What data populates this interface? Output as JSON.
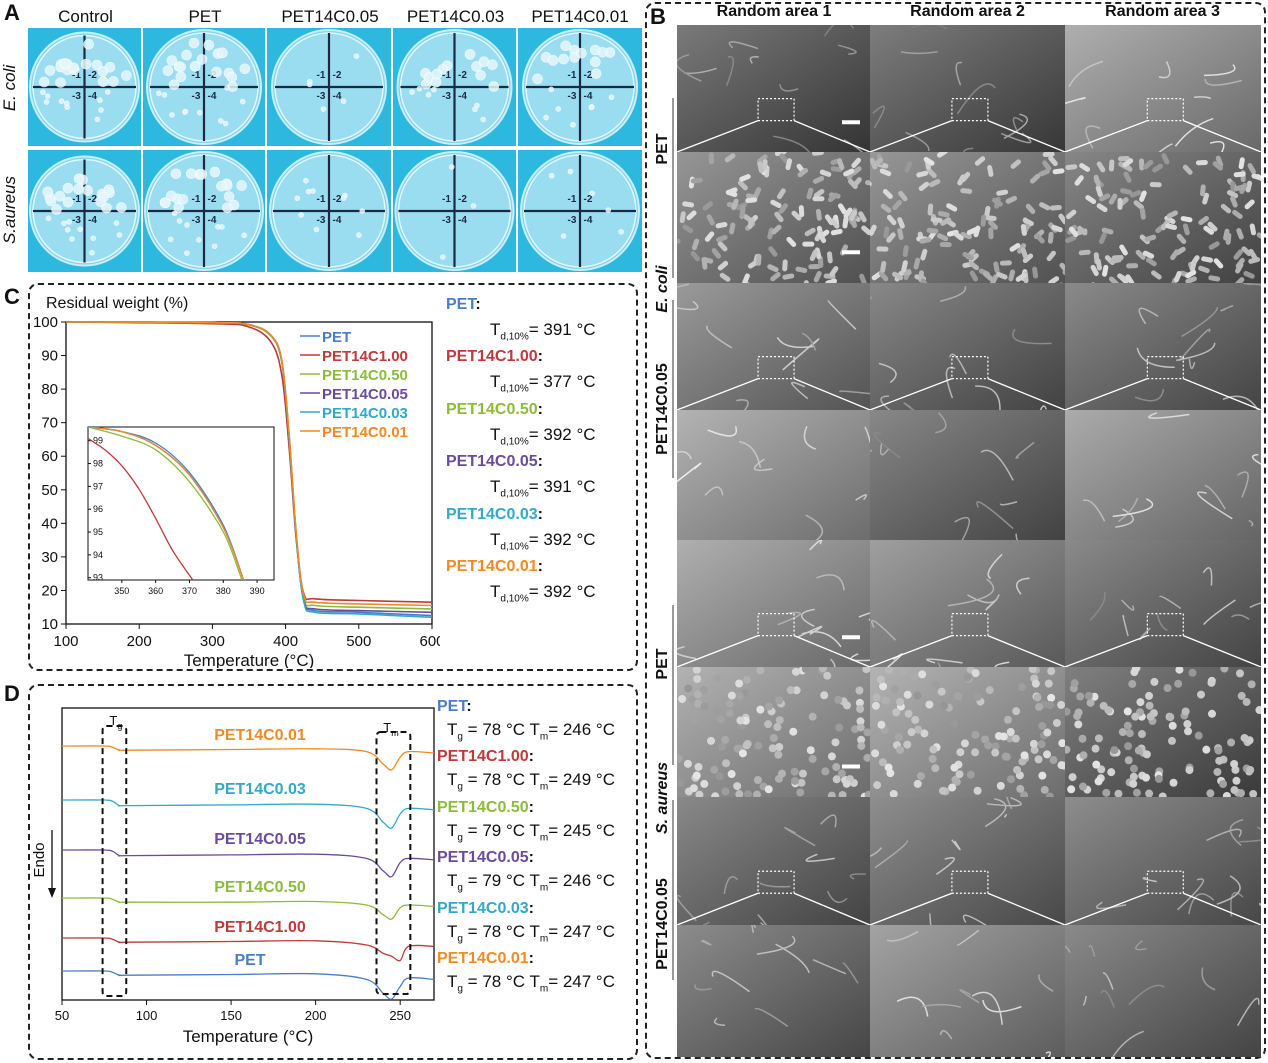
{
  "panels": {
    "A": "A",
    "B": "B",
    "C": "C",
    "D": "D"
  },
  "panelA": {
    "columns": [
      "Control",
      "PET",
      "PET14C0.05",
      "PET14C0.03",
      "PET14C0.01"
    ],
    "rows": [
      "E. coli",
      "S.aureus"
    ]
  },
  "panelB": {
    "columns": [
      "Random area 1",
      "Random area 2",
      "Random area 3"
    ],
    "groups": [
      {
        "sample": "PET",
        "organism": "E. coli"
      },
      {
        "sample": "PET14C0.05",
        "organism": ""
      },
      {
        "sample": "PET",
        "organism": "S. aureus"
      },
      {
        "sample": "PET14C0.05",
        "organism": ""
      }
    ]
  },
  "panelC_results": [
    {
      "name": "PET",
      "value": "= 391 °C",
      "color": "#4a7ecb"
    },
    {
      "name": "PET14C1.00",
      "value": "= 377 °C",
      "color": "#c0393b"
    },
    {
      "name": "PET14C0.50",
      "value": "= 392 °C",
      "color": "#8dbb3c"
    },
    {
      "name": "PET14C0.05",
      "value": "= 391 °C",
      "color": "#6a4c9c"
    },
    {
      "name": "PET14C0.03",
      "value": "= 392 °C",
      "color": "#31a9c7"
    },
    {
      "name": "PET14C0.01",
      "value": "= 392 °C",
      "color": "#f08a24"
    }
  ],
  "panelC_symbol": {
    "main": "T",
    "sub": "d,10%"
  },
  "panelD_results": [
    {
      "name": "PET",
      "tg": "= 78 °C",
      "tm": "= 246 °C",
      "color": "#4a7ecb"
    },
    {
      "name": "PET14C1.00",
      "tg": "= 78 °C",
      "tm": "= 249 °C",
      "color": "#c0393b"
    },
    {
      "name": "PET14C0.50",
      "tg": "= 79 °C",
      "tm": "= 245 °C",
      "color": "#8dbb3c"
    },
    {
      "name": "PET14C0.05",
      "tg": "= 79 °C",
      "tm": "= 246 °C",
      "color": "#6a4c9c"
    },
    {
      "name": "PET14C0.03",
      "tg": "= 78 °C",
      "tm": "= 247 °C",
      "color": "#31a9c7"
    },
    {
      "name": "PET14C0.01",
      "tg": "= 78 °C",
      "tm": "= 247 °C",
      "color": "#f08a24"
    }
  ],
  "chart_data": [
    {
      "type": "line",
      "panel": "C",
      "title": "Residual weight (%)",
      "xlabel": "Temperature (°C)",
      "ylabel": "",
      "xlim": [
        100,
        600
      ],
      "ylim": [
        10,
        100
      ],
      "xticks": [
        "100",
        "200",
        "300",
        "400",
        "500",
        "600"
      ],
      "yticks": [
        "10",
        "20",
        "30",
        "40",
        "50",
        "60",
        "70",
        "80",
        "90",
        "100"
      ],
      "legend": "top-right",
      "series": [
        {
          "name": "PET",
          "color": "#4a7ecb",
          "x": [
            100,
            300,
            350,
            380,
            395,
            405,
            415,
            425,
            440,
            500,
            600
          ],
          "y": [
            100,
            99.8,
            99.2,
            96,
            88,
            65,
            35,
            17,
            14,
            13.5,
            12.5
          ]
        },
        {
          "name": "PET14C1.00",
          "color": "#c0393b",
          "x": [
            100,
            300,
            350,
            380,
            395,
            405,
            415,
            425,
            440,
            500,
            600
          ],
          "y": [
            100,
            99.5,
            98.5,
            94,
            84,
            62,
            34,
            19,
            17.5,
            17,
            16.5
          ]
        },
        {
          "name": "PET14C0.50",
          "color": "#8dbb3c",
          "x": [
            100,
            300,
            350,
            380,
            395,
            405,
            415,
            425,
            440,
            500,
            600
          ],
          "y": [
            100,
            99.8,
            99.1,
            95.8,
            88,
            65,
            35,
            17.5,
            15.5,
            15,
            14.5
          ]
        },
        {
          "name": "PET14C0.05",
          "color": "#6a4c9c",
          "x": [
            100,
            300,
            350,
            380,
            395,
            405,
            415,
            425,
            440,
            500,
            600
          ],
          "y": [
            100,
            99.8,
            99.2,
            96,
            88,
            65,
            35,
            17,
            14.5,
            14,
            13.5
          ]
        },
        {
          "name": "PET14C0.03",
          "color": "#31a9c7",
          "x": [
            100,
            300,
            350,
            380,
            395,
            405,
            415,
            425,
            440,
            500,
            600
          ],
          "y": [
            100,
            99.8,
            99.2,
            96,
            88,
            65,
            35,
            16.5,
            13.5,
            13,
            12
          ]
        },
        {
          "name": "PET14C0.01",
          "color": "#f08a24",
          "x": [
            100,
            300,
            350,
            380,
            395,
            405,
            415,
            425,
            440,
            500,
            600
          ],
          "y": [
            100,
            99.8,
            99.2,
            96,
            88.5,
            66,
            36,
            18.5,
            16.5,
            16,
            15.5
          ]
        }
      ],
      "inset": {
        "xlim": [
          340,
          395
        ],
        "ylim": [
          92.9,
          99.6
        ],
        "xticks": [
          "350",
          "360",
          "370",
          "380",
          "390"
        ],
        "yticks": [
          "93",
          "94",
          "95",
          "96",
          "97",
          "98",
          "99"
        ],
        "series": [
          {
            "name": "PET",
            "color": "#4a7ecb",
            "x": [
              340,
              350,
              360,
              370,
              380,
              386
            ],
            "y": [
              99.6,
              99.4,
              98.9,
              97.6,
              95.3,
              92.9
            ]
          },
          {
            "name": "PET14C1.00",
            "color": "#c0393b",
            "x": [
              340,
              345,
              350,
              355,
              360,
              365,
              371
            ],
            "y": [
              99.1,
              98.6,
              97.9,
              96.9,
              95.6,
              94.2,
              92.9
            ]
          },
          {
            "name": "PET14C0.50",
            "color": "#8dbb3c",
            "x": [
              340,
              350,
              360,
              370,
              380,
              385.5
            ],
            "y": [
              99.6,
              99.2,
              98.6,
              97.2,
              95,
              92.9
            ]
          },
          {
            "name": "PET14C0.05",
            "color": "#6a4c9c",
            "x": [
              340,
              350,
              360,
              370,
              380,
              386
            ],
            "y": [
              99.6,
              99.4,
              98.8,
              97.5,
              95.2,
              92.9
            ]
          },
          {
            "name": "PET14C0.03",
            "color": "#31a9c7",
            "x": [
              340,
              350,
              360,
              370,
              380,
              386
            ],
            "y": [
              99.6,
              99.4,
              98.8,
              97.5,
              95.2,
              92.9
            ]
          },
          {
            "name": "PET14C0.01",
            "color": "#f08a24",
            "x": [
              340,
              350,
              360,
              370,
              380,
              386
            ],
            "y": [
              99.6,
              99.4,
              98.8,
              97.5,
              95.2,
              92.9
            ]
          }
        ]
      }
    },
    {
      "type": "line",
      "panel": "D",
      "xlabel": "Temperature (°C)",
      "ylabel": "Endo",
      "xlim": [
        50,
        270
      ],
      "xticks": [
        "50",
        "100",
        "150",
        "200",
        "250"
      ],
      "grid": false,
      "annotations": [
        {
          "label": "T",
          "sub": "g"
        },
        {
          "label": "T",
          "sub": "m"
        }
      ],
      "series": [
        {
          "name": "PET14C0.01",
          "color": "#f08a24",
          "x": [
            50,
            75,
            80,
            84,
            90,
            150,
            200,
            230,
            240,
            245,
            250,
            255,
            270
          ],
          "y": [
            0,
            0,
            -0.1,
            -0.3,
            -0.3,
            -0.25,
            -0.2,
            -0.4,
            -1.3,
            -1.7,
            -0.8,
            -0.4,
            -0.5
          ]
        },
        {
          "name": "PET14C0.03",
          "color": "#31a9c7",
          "x": [
            50,
            75,
            80,
            84,
            90,
            150,
            200,
            230,
            240,
            245,
            250,
            255,
            270
          ],
          "y": [
            0,
            0,
            -0.1,
            -0.4,
            -0.4,
            -0.35,
            -0.3,
            -0.6,
            -1.6,
            -2.0,
            -1.0,
            -0.6,
            -0.7
          ]
        },
        {
          "name": "PET14C0.05",
          "color": "#6a4c9c",
          "x": [
            50,
            75,
            80,
            84,
            90,
            150,
            200,
            230,
            240,
            245,
            250,
            255,
            270
          ],
          "y": [
            0,
            0,
            -0.1,
            -0.4,
            -0.4,
            -0.35,
            -0.3,
            -0.6,
            -1.5,
            -1.9,
            -0.9,
            -0.6,
            -0.7
          ]
        },
        {
          "name": "PET14C0.50",
          "color": "#8dbb3c",
          "x": [
            50,
            75,
            80,
            84,
            90,
            150,
            200,
            230,
            240,
            245,
            250,
            255,
            270
          ],
          "y": [
            0,
            0,
            -0.1,
            -0.3,
            -0.3,
            -0.3,
            -0.25,
            -0.5,
            -1.2,
            -1.5,
            -0.7,
            -0.5,
            -0.6
          ]
        },
        {
          "name": "PET14C1.00",
          "color": "#c0393b",
          "x": [
            50,
            75,
            80,
            84,
            90,
            150,
            200,
            230,
            240,
            245,
            250,
            255,
            270
          ],
          "y": [
            0,
            0,
            -0.1,
            -0.3,
            -0.3,
            -0.25,
            -0.2,
            -0.5,
            -1.1,
            -1.3,
            -1.6,
            -0.6,
            -0.6
          ]
        },
        {
          "name": "PET",
          "color": "#4a7ecb",
          "x": [
            50,
            75,
            80,
            84,
            90,
            150,
            200,
            230,
            240,
            245,
            250,
            255,
            270
          ],
          "y": [
            0,
            0,
            -0.1,
            -0.3,
            -0.3,
            -0.25,
            -0.2,
            -0.6,
            -1.6,
            -2.0,
            -1.1,
            -0.5,
            -0.6
          ]
        }
      ]
    }
  ]
}
